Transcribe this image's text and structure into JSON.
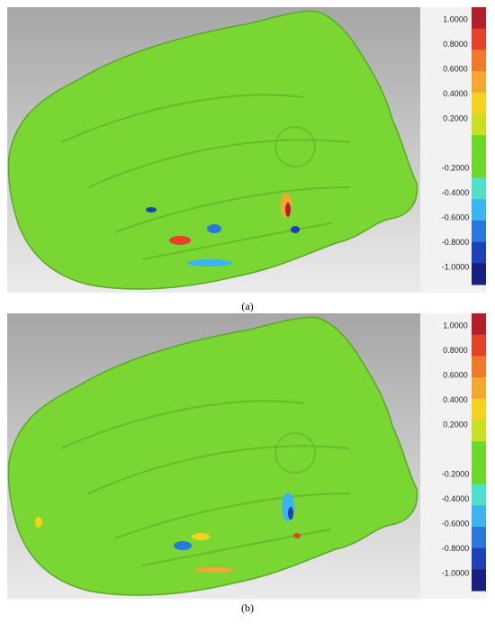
{
  "panels": [
    {
      "caption": "(a)",
      "colorbar": {
        "labels": [
          "1.0000",
          "0.8000",
          "0.6000",
          "0.4000",
          "0.2000",
          "-0.2000",
          "-0.4000",
          "-0.6000",
          "-0.8000",
          "-1.0000"
        ]
      }
    },
    {
      "caption": "(b)",
      "colorbar": {
        "labels": [
          "1.0000",
          "0.8000",
          "0.6000",
          "0.4000",
          "0.2000",
          "-0.2000",
          "-0.4000",
          "-0.6000",
          "-0.8000",
          "-1.0000"
        ]
      }
    }
  ],
  "colorbar_colors": [
    "#b4202a",
    "#e8412a",
    "#f07a2a",
    "#f5a830",
    "#f6d21e",
    "#c8e020",
    "#6cd82a",
    "#6cd82a",
    "#4ee0c8",
    "#3cb4f0",
    "#2878e0",
    "#1e40b8",
    "#1a2080"
  ]
}
